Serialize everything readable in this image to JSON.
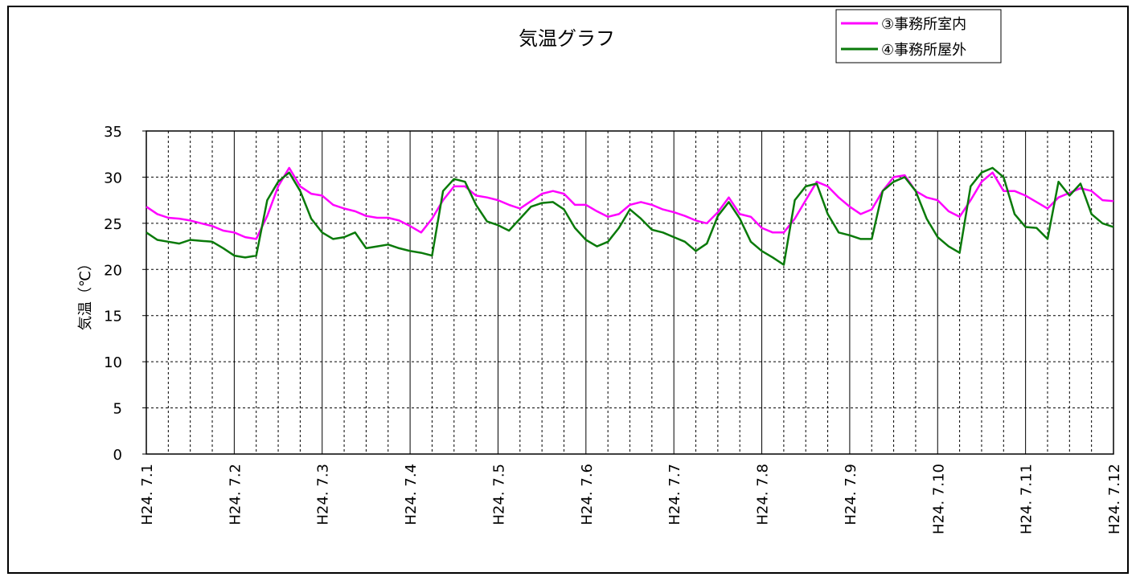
{
  "chart_data": {
    "type": "line",
    "title": "気温グラフ",
    "y_label": "気温（℃）",
    "categories": [
      "H24. 7.1",
      null,
      null,
      null,
      null,
      null,
      null,
      null,
      "H24. 7.2",
      null,
      null,
      null,
      null,
      null,
      null,
      null,
      "H24. 7.3",
      null,
      null,
      null,
      null,
      null,
      null,
      null,
      "H24. 7.4",
      null,
      null,
      null,
      null,
      null,
      null,
      null,
      "H24. 7.5",
      null,
      null,
      null,
      null,
      null,
      null,
      null,
      "H24. 7.6",
      null,
      null,
      null,
      null,
      null,
      null,
      null,
      "H24. 7.7",
      null,
      null,
      null,
      null,
      null,
      null,
      null,
      "H24. 7.8",
      null,
      null,
      null,
      null,
      null,
      null,
      null,
      "H24. 7.9",
      null,
      null,
      null,
      null,
      null,
      null,
      null,
      "H24. 7.10",
      null,
      null,
      null,
      null,
      null,
      null,
      null,
      "H24. 7.11",
      null,
      null,
      null,
      null,
      null,
      null,
      null,
      "H24. 7.12"
    ],
    "series": [
      {
        "name": "③事務所室内",
        "color": "#ff00ff",
        "values": [
          26.8,
          26.0,
          25.6,
          25.5,
          25.3,
          25.0,
          24.7,
          24.2,
          24.0,
          23.5,
          23.3,
          25.8,
          29.0,
          31.0,
          29.0,
          28.2,
          28.0,
          27.0,
          26.6,
          26.3,
          25.8,
          25.6,
          25.6,
          25.3,
          24.7,
          24.0,
          25.5,
          27.5,
          29.0,
          29.0,
          28.0,
          27.8,
          27.5,
          27.0,
          26.6,
          27.4,
          28.2,
          28.5,
          28.2,
          27.0,
          27.0,
          26.3,
          25.7,
          26.0,
          27.0,
          27.3,
          27.0,
          26.5,
          26.2,
          25.8,
          25.3,
          25.0,
          26.2,
          27.8,
          26.0,
          25.7,
          24.5,
          24.0,
          24.0,
          25.5,
          27.5,
          29.5,
          29.0,
          27.8,
          26.8,
          26.0,
          26.5,
          28.5,
          30.0,
          30.2,
          28.5,
          27.8,
          27.5,
          26.3,
          25.7,
          27.5,
          29.5,
          30.5,
          28.5,
          28.5,
          28.0,
          27.3,
          26.6,
          27.8,
          28.3,
          28.8,
          28.5,
          27.5,
          27.4
        ]
      },
      {
        "name": "④事務所屋外",
        "color": "#0a7a0a",
        "values": [
          24.0,
          23.2,
          23.0,
          22.8,
          23.2,
          23.1,
          23.0,
          22.3,
          21.5,
          21.3,
          21.5,
          27.5,
          29.5,
          30.5,
          28.5,
          25.5,
          24.0,
          23.3,
          23.5,
          24.0,
          22.3,
          22.5,
          22.7,
          22.3,
          22.0,
          21.8,
          21.5,
          28.5,
          29.8,
          29.5,
          27.0,
          25.2,
          24.8,
          24.2,
          25.5,
          26.8,
          27.2,
          27.3,
          26.5,
          24.5,
          23.2,
          22.5,
          23.0,
          24.5,
          26.5,
          25.5,
          24.3,
          24.0,
          23.5,
          23.0,
          22.0,
          22.8,
          25.8,
          27.3,
          25.5,
          23.0,
          22.0,
          21.3,
          20.5,
          27.5,
          29.0,
          29.3,
          26.0,
          24.0,
          23.7,
          23.3,
          23.3,
          28.5,
          29.5,
          30.0,
          28.5,
          25.5,
          23.5,
          22.5,
          21.8,
          29.0,
          30.5,
          31.0,
          30.0,
          26.0,
          24.6,
          24.5,
          23.3,
          29.5,
          28.0,
          29.3,
          26.0,
          25.0,
          24.6
        ]
      }
    ],
    "ylim": [
      0,
      35
    ],
    "yticks": [
      0,
      5,
      10,
      15,
      20,
      25,
      30,
      35
    ],
    "grid": true,
    "legend_position": "upper right"
  }
}
